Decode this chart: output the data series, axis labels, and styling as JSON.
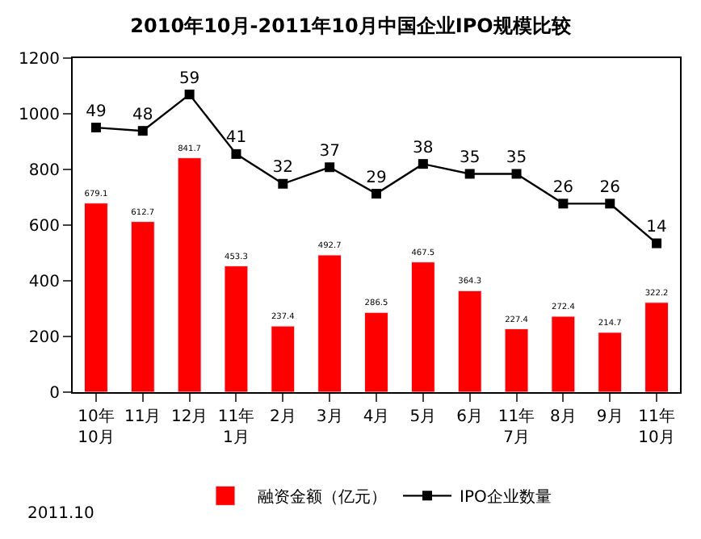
{
  "chart_data": {
    "type": "bar",
    "title": "2010年10月-2011年10月中国企业IPO规模比较",
    "categories": [
      "10年\n10月",
      "11月",
      "12月",
      "11年\n1月",
      "2月",
      "3月",
      "4月",
      "5月",
      "6月",
      "11年\n7月",
      "8月",
      "9月",
      "11年\n10月"
    ],
    "series": [
      {
        "name": "融资金额（亿元）",
        "color": "#ff0000",
        "values": [
          679.1,
          612.7,
          841.7,
          453.3,
          237.4,
          492.7,
          286.5,
          467.5,
          364.3,
          227.4,
          272.4,
          214.7,
          322.2
        ]
      },
      {
        "name": "IPO企业数量",
        "type": "line",
        "axis": "y2",
        "color": "#000000",
        "marker": "square",
        "values": [
          49,
          48,
          59,
          41,
          32,
          37,
          29,
          38,
          35,
          35,
          26,
          26,
          14
        ]
      }
    ],
    "ylim": [
      0,
      1200
    ],
    "yticks": [
      0,
      200,
      400,
      600,
      800,
      1000,
      1200
    ],
    "y2lim": [
      -31,
      70
    ],
    "tick_labels": "xy",
    "data_labels": true,
    "legend": "bottom",
    "annotations": [
      "2011.10"
    ]
  }
}
